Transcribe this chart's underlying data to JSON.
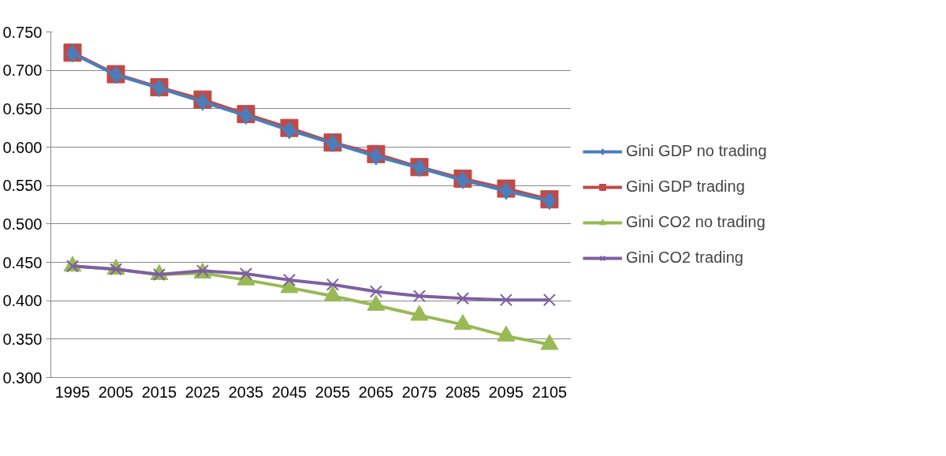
{
  "chart_data": {
    "type": "line",
    "categories": [
      "1995",
      "2005",
      "2015",
      "2025",
      "2035",
      "2045",
      "2055",
      "2065",
      "2075",
      "2085",
      "2095",
      "2105"
    ],
    "series": [
      {
        "name": "Gini GDP no trading",
        "color": "#4a7ebb",
        "marker": "diamond",
        "values": [
          0.722,
          0.694,
          0.677,
          0.659,
          0.641,
          0.622,
          0.605,
          0.588,
          0.573,
          0.557,
          0.543,
          0.53
        ]
      },
      {
        "name": "Gini GDP trading",
        "color": "#be4b48",
        "marker": "square",
        "values": [
          0.723,
          0.695,
          0.678,
          0.662,
          0.643,
          0.625,
          0.606,
          0.591,
          0.574,
          0.559,
          0.546,
          0.532
        ]
      },
      {
        "name": "Gini CO2 no trading",
        "color": "#98b954",
        "marker": "triangle",
        "values": [
          0.445,
          0.441,
          0.434,
          0.436,
          0.427,
          0.417,
          0.406,
          0.394,
          0.381,
          0.369,
          0.354,
          0.343
        ]
      },
      {
        "name": "Gini CO2 trading",
        "color": "#7d60a0",
        "marker": "cross",
        "values": [
          0.445,
          0.441,
          0.434,
          0.439,
          0.435,
          0.427,
          0.421,
          0.412,
          0.406,
          0.403,
          0.401,
          0.401
        ]
      }
    ],
    "ylim": [
      0.3,
      0.75
    ],
    "yticks": [
      {
        "value": 0.3,
        "label": "0.300"
      },
      {
        "value": 0.35,
        "label": "0.350"
      },
      {
        "value": 0.4,
        "label": "0.400"
      },
      {
        "value": 0.45,
        "label": "0.450"
      },
      {
        "value": 0.5,
        "label": "0.500"
      },
      {
        "value": 0.55,
        "label": "0.550"
      },
      {
        "value": 0.6,
        "label": "0.600"
      },
      {
        "value": 0.65,
        "label": "0.650"
      },
      {
        "value": 0.7,
        "label": "0.700"
      },
      {
        "value": 0.75,
        "label": "0.750"
      }
    ],
    "grid": "y",
    "legend": "right"
  }
}
